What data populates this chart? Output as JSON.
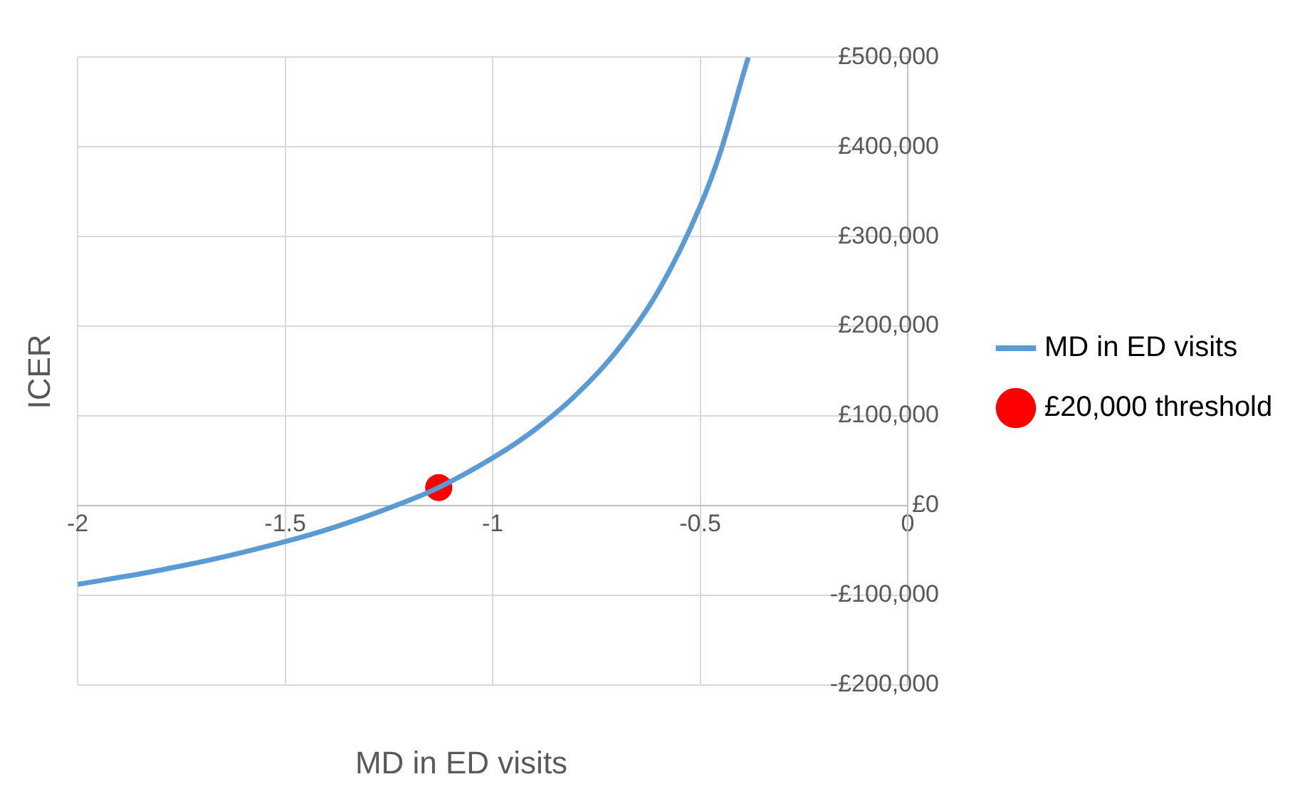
{
  "chart_data": {
    "type": "line",
    "xlabel": "MD in ED visits",
    "ylabel": "ICER",
    "xlim": [
      -2,
      0
    ],
    "xticks": [
      -2,
      -1.5,
      -1,
      -0.5,
      0
    ],
    "ylim": [
      -200000,
      500000
    ],
    "yticks": [
      {
        "value": -200000,
        "label": "-£200,000"
      },
      {
        "value": -100000,
        "label": "-£100,000"
      },
      {
        "value": 0,
        "label": "£0"
      },
      {
        "value": 100000,
        "label": "£100,000"
      },
      {
        "value": 200000,
        "label": "£200,000"
      },
      {
        "value": 300000,
        "label": "£300,000"
      },
      {
        "value": 400000,
        "label": "£400,000"
      },
      {
        "value": 500000,
        "label": "£500,000"
      }
    ],
    "grid": true,
    "legend": "right",
    "series": [
      {
        "name": "MD in ED visits",
        "color": "#5b9bd5",
        "marker": "none",
        "x": [
          -2,
          -1.8,
          -1.6,
          -1.4,
          -1.2,
          -1.13,
          -1,
          -0.9,
          -0.8,
          -0.7,
          -0.6,
          -0.5,
          -0.45,
          -0.4,
          -0.384
        ],
        "values": [
          -88000,
          -72000,
          -52000,
          -27000,
          6000,
          20000,
          53000,
          84000,
          123000,
          173000,
          240000,
          334000,
          396000,
          475000,
          500000
        ]
      },
      {
        "name": "£20,000 threshold",
        "type": "scatter",
        "color": "#ff0000",
        "marker": "circle",
        "x": [
          -1.13
        ],
        "values": [
          20000
        ]
      }
    ]
  }
}
